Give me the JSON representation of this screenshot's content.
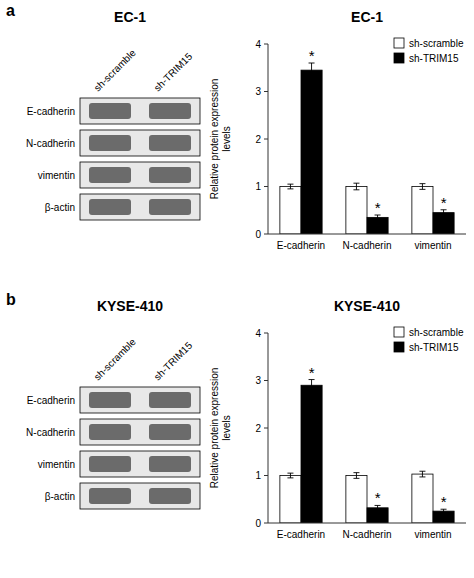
{
  "chart_data": [
    {
      "type": "blot",
      "title": "EC-1",
      "annotations": [
        "a"
      ],
      "categories": [
        "E-cadherin",
        "N-cadherin",
        "vimentin",
        "β-actin"
      ],
      "columns": [
        "sh-scramble",
        "sh-TRIM15"
      ]
    },
    {
      "type": "bar",
      "title": "EC-1",
      "categories": [
        "E-cadherin",
        "N-cadherin",
        "vimentin"
      ],
      "series": [
        {
          "name": "sh-scramble",
          "color": "white",
          "values": [
            1.0,
            1.0,
            1.0
          ],
          "errors": [
            0.05,
            0.07,
            0.06
          ]
        },
        {
          "name": "sh-TRIM15",
          "color": "black",
          "values": [
            3.45,
            0.35,
            0.45
          ],
          "errors": [
            0.15,
            0.05,
            0.06
          ],
          "annotations": [
            "*",
            "*",
            "*"
          ]
        }
      ],
      "ylabel": "Relative protein expression\nlevels",
      "ylim": [
        0,
        4
      ],
      "yticks": [
        0,
        1,
        2,
        3,
        4
      ],
      "grid": false,
      "legend": "upper right"
    },
    {
      "type": "blot",
      "title": "KYSE-410",
      "annotations": [
        "b"
      ],
      "categories": [
        "E-cadherin",
        "N-cadherin",
        "vimentin",
        "β-actin"
      ],
      "columns": [
        "sh-scramble",
        "sh-TRIM15"
      ]
    },
    {
      "type": "bar",
      "title": "KYSE-410",
      "categories": [
        "E-cadherin",
        "N-cadherin",
        "vimentin"
      ],
      "series": [
        {
          "name": "sh-scramble",
          "color": "white",
          "values": [
            1.0,
            1.0,
            1.03
          ],
          "errors": [
            0.05,
            0.06,
            0.06
          ]
        },
        {
          "name": "sh-TRIM15",
          "color": "black",
          "values": [
            2.9,
            0.32,
            0.25
          ],
          "errors": [
            0.12,
            0.05,
            0.04
          ],
          "annotations": [
            "*",
            "*",
            "*"
          ]
        }
      ],
      "ylabel": "Relative protein expression\nlevels",
      "ylim": [
        0,
        4
      ],
      "yticks": [
        0,
        1,
        2,
        3,
        4
      ],
      "grid": false,
      "legend": "upper right"
    }
  ]
}
